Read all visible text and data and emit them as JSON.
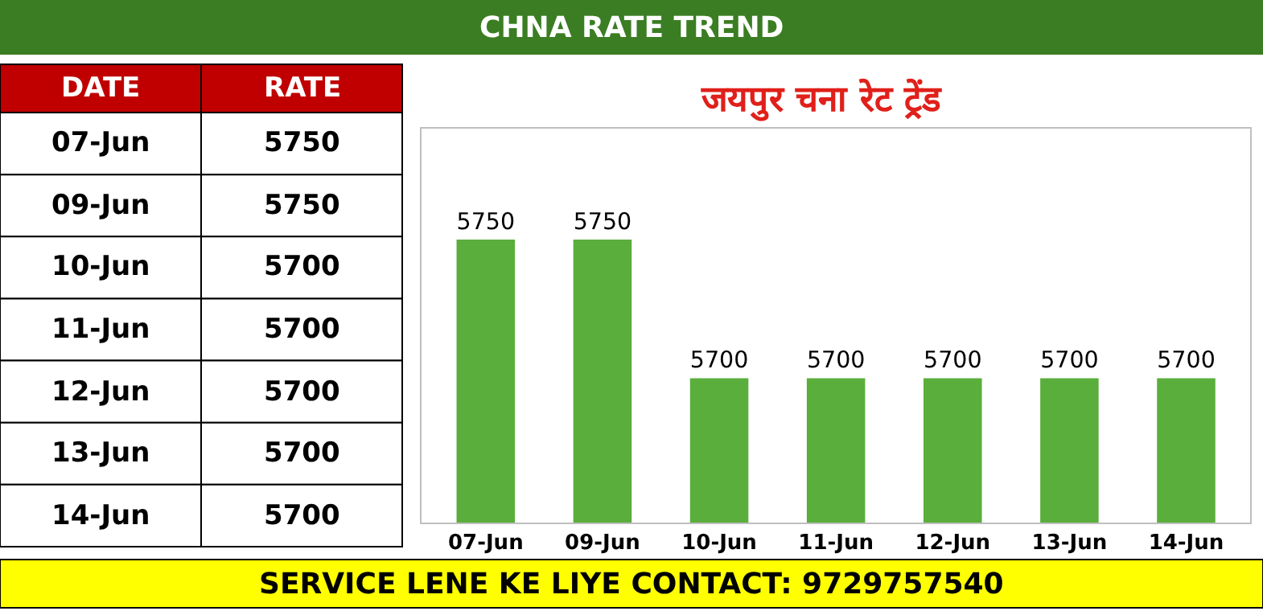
{
  "chart_data": [
    {
      "type": "other",
      "categories": [
        "07-Jun",
        "09-Jun",
        "10-Jun",
        "11-Jun",
        "12-Jun",
        "13-Jun",
        "14-Jun"
      ],
      "values": [
        5750,
        5750,
        5700,
        5700,
        5700,
        5700,
        5700
      ],
      "data_labels": true,
      "annotations": [
        "DATE",
        "RATE"
      ]
    },
    {
      "type": "bar",
      "title": "CHNA RATE TREND",
      "subtitle": "जयपुर चना रेट ट्रेंड",
      "categories": [
        "07-Jun",
        "09-Jun",
        "10-Jun",
        "11-Jun",
        "12-Jun",
        "13-Jun",
        "14-Jun"
      ],
      "values": [
        5750,
        5750,
        5700,
        5700,
        5700,
        5700,
        5700
      ],
      "color": "#5aae3c",
      "ylim": [
        5648,
        5790
      ],
      "data_labels": true,
      "annotations": [
        "SERVICE LENE KE LIYE CONTACT: 9729757540"
      ]
    }
  ]
}
